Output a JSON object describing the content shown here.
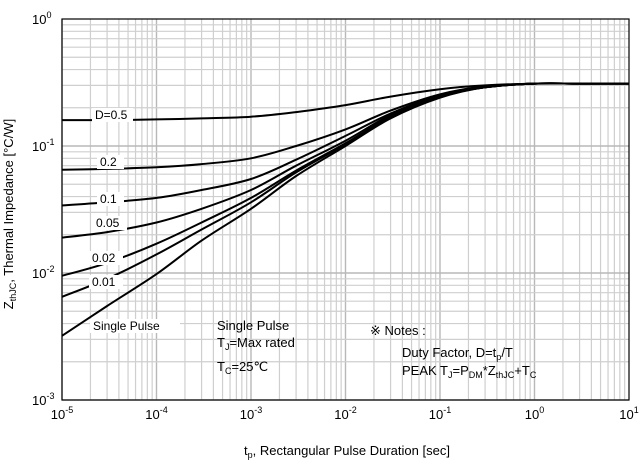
{
  "chart_data": {
    "type": "line",
    "x_scale": "log",
    "y_scale": "log",
    "xlim": [
      1e-05,
      10
    ],
    "ylim": [
      0.001,
      1
    ],
    "grid": true,
    "xlabel": {
      "main": "t",
      "sub": "p",
      "rest": ", Rectangular Pulse Duration [sec]"
    },
    "ylabel": {
      "main": "Z",
      "sub": "thJC",
      "rest": ", Thermal Impedance [°C/W]"
    },
    "x_ticks": [
      {
        "base": "10",
        "exp": "-5",
        "value": 1e-05
      },
      {
        "base": "10",
        "exp": "-4",
        "value": 0.0001
      },
      {
        "base": "10",
        "exp": "-3",
        "value": 0.001
      },
      {
        "base": "10",
        "exp": "-2",
        "value": 0.01
      },
      {
        "base": "10",
        "exp": "-1",
        "value": 0.1
      },
      {
        "base": "10",
        "exp": "0",
        "value": 1
      },
      {
        "base": "10",
        "exp": "1",
        "value": 10
      }
    ],
    "y_ticks": [
      {
        "base": "10",
        "exp": "0",
        "value": 1
      },
      {
        "base": "10",
        "exp": "-1",
        "value": 0.1
      },
      {
        "base": "10",
        "exp": "-2",
        "value": 0.01
      },
      {
        "base": "10",
        "exp": "-3",
        "value": 0.001
      }
    ],
    "x": [
      1e-05,
      3e-05,
      0.0001,
      0.0003,
      0.001,
      0.003,
      0.01,
      0.03,
      0.1,
      0.3,
      1,
      3,
      10
    ],
    "series": [
      {
        "name": "D=0.5",
        "values": [
          0.16,
          0.16,
          0.162,
          0.165,
          0.17,
          0.185,
          0.21,
          0.245,
          0.28,
          0.3,
          0.31,
          0.31,
          0.31
        ]
      },
      {
        "name": "0.2",
        "values": [
          0.065,
          0.066,
          0.068,
          0.072,
          0.08,
          0.1,
          0.135,
          0.19,
          0.255,
          0.295,
          0.31,
          0.31,
          0.31
        ]
      },
      {
        "name": "0.1",
        "values": [
          0.034,
          0.036,
          0.039,
          0.045,
          0.055,
          0.078,
          0.12,
          0.18,
          0.25,
          0.29,
          0.31,
          0.31,
          0.31
        ]
      },
      {
        "name": "0.05",
        "values": [
          0.019,
          0.021,
          0.025,
          0.032,
          0.045,
          0.07,
          0.11,
          0.175,
          0.245,
          0.29,
          0.31,
          0.31,
          0.31
        ]
      },
      {
        "name": "0.02",
        "values": [
          0.0095,
          0.012,
          0.017,
          0.025,
          0.039,
          0.064,
          0.105,
          0.17,
          0.245,
          0.29,
          0.31,
          0.31,
          0.31
        ]
      },
      {
        "name": "0.01",
        "values": [
          0.0065,
          0.009,
          0.014,
          0.022,
          0.036,
          0.062,
          0.103,
          0.168,
          0.245,
          0.29,
          0.31,
          0.31,
          0.31
        ]
      },
      {
        "name": "Single Pulse",
        "values": [
          0.0032,
          0.0055,
          0.0098,
          0.018,
          0.032,
          0.058,
          0.1,
          0.165,
          0.24,
          0.29,
          0.31,
          0.31,
          0.31
        ]
      }
    ],
    "curve_labels": [
      "D=0.5",
      "0.2",
      "0.1",
      "0.05",
      "0.02",
      "0.01",
      "Single Pulse"
    ],
    "annotations": {
      "conditions": [
        {
          "main": "Single Pulse",
          "sub": "",
          "rest": ""
        },
        {
          "main": "T",
          "sub": "J",
          "rest": "=Max rated"
        },
        {
          "main": "T",
          "sub": "C",
          "rest": "=25℃"
        }
      ],
      "notes_title": "※ Notes :",
      "notes": [
        {
          "main": "Duty Factor, D=t",
          "sub": "p",
          "rest": "/T"
        }
      ],
      "peak": {
        "a": "PEAK T",
        "a_sub": "J",
        "b": "=P",
        "b_sub": "DM",
        "c": "*Z",
        "c_sub": "thJC",
        "d": "+T",
        "d_sub": "C"
      }
    }
  }
}
